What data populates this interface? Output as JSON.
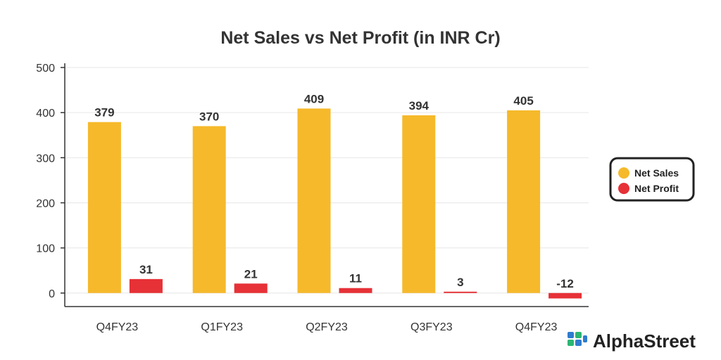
{
  "chart_data": {
    "type": "bar",
    "title": "Net Sales vs Net Profit (in INR Cr)",
    "xlabel": "",
    "ylabel": "",
    "categories": [
      "Q4FY23",
      "Q1FY23",
      "Q2FY23",
      "Q3FY23",
      "Q4FY23"
    ],
    "series": [
      {
        "name": "Net Sales",
        "values": [
          379,
          370,
          409,
          394,
          405
        ],
        "color": "#F6B92B"
      },
      {
        "name": "Net Profit",
        "values": [
          31,
          21,
          11,
          3,
          -12
        ],
        "color": "#E63137"
      }
    ],
    "ylim": [
      -30,
      500
    ],
    "yticks": [
      0,
      100,
      200,
      300,
      400,
      500
    ],
    "grid": true,
    "legend": "right"
  },
  "branding": {
    "name": "AlphaStreet",
    "icon": "alphastreet-logo-icon",
    "colors": [
      "#2E7BCF",
      "#2BB673"
    ]
  }
}
